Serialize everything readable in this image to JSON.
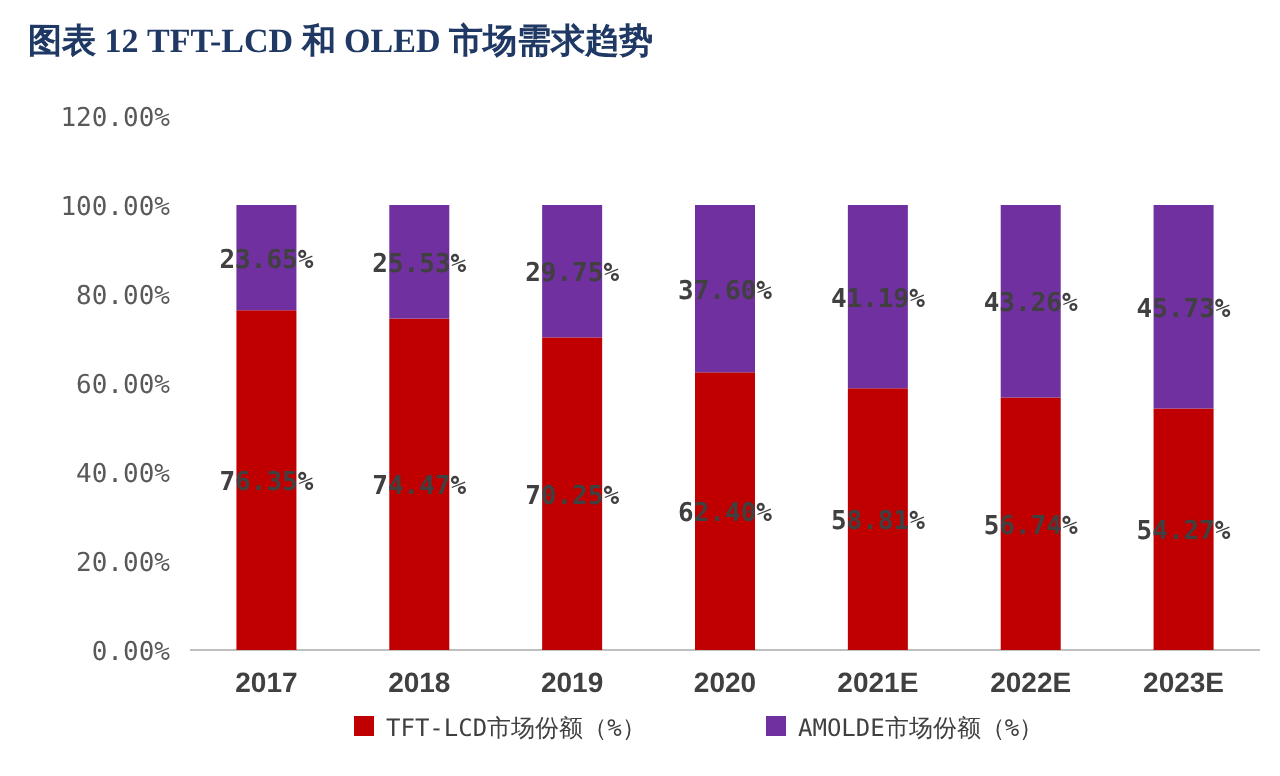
{
  "chart_data": {
    "type": "bar",
    "stacked": true,
    "title": "图表 12   TFT-LCD 和 OLED 市场需求趋势",
    "categories": [
      "2017",
      "2018",
      "2019",
      "2020",
      "2021E",
      "2022E",
      "2023E"
    ],
    "series": [
      {
        "name": "TFT-LCD市场份额（%）",
        "color": "#c00000",
        "values": [
          76.35,
          74.47,
          70.25,
          62.4,
          58.81,
          56.74,
          54.27
        ],
        "value_labels": [
          "76.35%",
          "74.47%",
          "70.25%",
          "62.40%",
          "58.81%",
          "56.74%",
          "54.27%"
        ]
      },
      {
        "name": "AMOLDE市场份额（%）",
        "color": "#7030a0",
        "values": [
          23.65,
          25.53,
          29.75,
          37.6,
          41.19,
          43.26,
          45.73
        ],
        "value_labels": [
          "23.65%",
          "25.53%",
          "29.75%",
          "37.60%",
          "41.19%",
          "43.26%",
          "45.73%"
        ]
      }
    ],
    "ylim": [
      0,
      120
    ],
    "yticks": [
      {
        "value": 0,
        "label": "0.00%"
      },
      {
        "value": 20,
        "label": "20.00%"
      },
      {
        "value": 40,
        "label": "40.00%"
      },
      {
        "value": 60,
        "label": "60.00%"
      },
      {
        "value": 80,
        "label": "80.00%"
      },
      {
        "value": 100,
        "label": "100.00%"
      },
      {
        "value": 120,
        "label": "120.00%"
      }
    ],
    "legend": "bottom",
    "grid": false
  }
}
